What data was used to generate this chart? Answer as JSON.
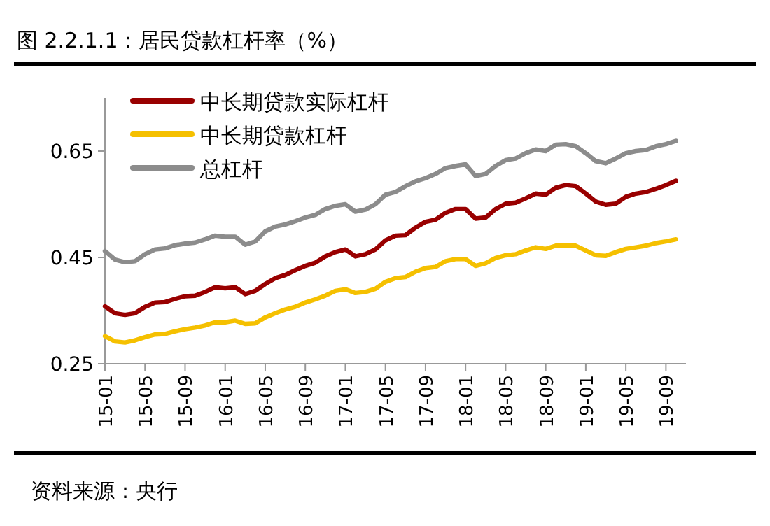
{
  "chart_data": {
    "type": "line",
    "title": "图 2.2.1.1：居民贷款杠杆率（%）",
    "categories": [
      "15-01",
      null,
      null,
      null,
      "15-05",
      null,
      null,
      null,
      "15-09",
      null,
      null,
      null,
      "16-01",
      null,
      null,
      null,
      "16-05",
      null,
      null,
      null,
      "16-09",
      null,
      null,
      null,
      "17-01",
      null,
      null,
      null,
      "17-05",
      null,
      null,
      null,
      "17-09",
      null,
      null,
      null,
      "18-01",
      null,
      null,
      null,
      "18-05",
      null,
      null,
      null,
      "18-09",
      null,
      null,
      null,
      "19-01",
      null,
      null,
      null,
      "19-05",
      null,
      null,
      null,
      "19-09",
      null
    ],
    "series": [
      {
        "name": "中长期贷款实际杠杆",
        "color": "#990000",
        "values": [
          0.358,
          0.345,
          0.342,
          0.345,
          0.357,
          0.365,
          0.366,
          0.372,
          0.377,
          0.378,
          0.385,
          0.394,
          0.392,
          0.394,
          0.381,
          0.387,
          0.4,
          0.411,
          0.417,
          0.426,
          0.434,
          0.44,
          0.452,
          0.46,
          0.465,
          0.452,
          0.456,
          0.465,
          0.482,
          0.491,
          0.492,
          0.506,
          0.517,
          0.521,
          0.534,
          0.541,
          0.541,
          0.523,
          0.525,
          0.541,
          0.551,
          0.553,
          0.561,
          0.57,
          0.568,
          0.581,
          0.586,
          0.584,
          0.57,
          0.555,
          0.549,
          0.551,
          0.564,
          0.57,
          0.573,
          0.579,
          0.586,
          0.594
        ]
      },
      {
        "name": "中长期贷款杠杆",
        "color": "#f5c000",
        "values": [
          0.302,
          0.292,
          0.29,
          0.294,
          0.3,
          0.305,
          0.306,
          0.311,
          0.315,
          0.318,
          0.322,
          0.328,
          0.328,
          0.331,
          0.325,
          0.326,
          0.337,
          0.345,
          0.352,
          0.357,
          0.365,
          0.371,
          0.378,
          0.387,
          0.39,
          0.383,
          0.385,
          0.391,
          0.404,
          0.411,
          0.413,
          0.423,
          0.43,
          0.432,
          0.443,
          0.447,
          0.447,
          0.434,
          0.439,
          0.449,
          0.454,
          0.456,
          0.463,
          0.469,
          0.466,
          0.472,
          0.473,
          0.472,
          0.463,
          0.454,
          0.453,
          0.46,
          0.466,
          0.469,
          0.472,
          0.477,
          0.48,
          0.484
        ]
      },
      {
        "name": "总杠杆",
        "color": "#8c8c8c",
        "values": [
          0.462,
          0.446,
          0.441,
          0.443,
          0.456,
          0.465,
          0.467,
          0.473,
          0.476,
          0.478,
          0.484,
          0.491,
          0.489,
          0.489,
          0.474,
          0.48,
          0.499,
          0.508,
          0.512,
          0.518,
          0.525,
          0.53,
          0.541,
          0.547,
          0.55,
          0.536,
          0.54,
          0.55,
          0.568,
          0.573,
          0.584,
          0.593,
          0.599,
          0.607,
          0.618,
          0.622,
          0.625,
          0.603,
          0.607,
          0.622,
          0.633,
          0.636,
          0.646,
          0.653,
          0.65,
          0.662,
          0.663,
          0.659,
          0.646,
          0.631,
          0.627,
          0.636,
          0.646,
          0.65,
          0.652,
          0.659,
          0.663,
          0.669
        ]
      }
    ],
    "ylim": [
      0.25,
      0.75
    ],
    "yticks": [
      0.25,
      0.45,
      0.65
    ],
    "grid": false,
    "legend": "top left",
    "marker": "none",
    "line_style": "solid",
    "annotations": [
      "资料来源：央行"
    ]
  }
}
